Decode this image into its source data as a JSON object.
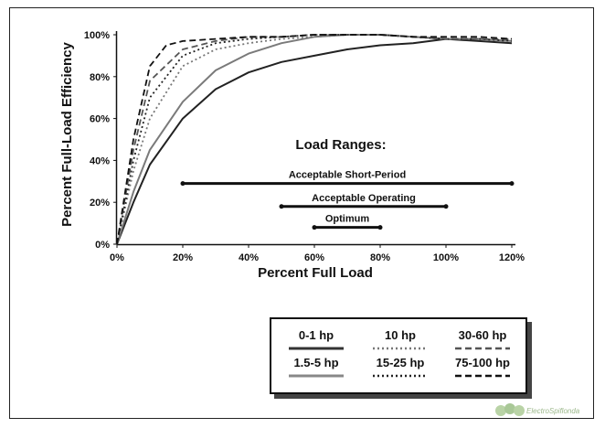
{
  "chart_data": {
    "type": "line",
    "xlabel": "Percent Full Load",
    "ylabel": "Percent Full-Load Efficiency",
    "x_ticks": [
      "0%",
      "20%",
      "40%",
      "60%",
      "80%",
      "100%",
      "120%"
    ],
    "y_ticks": [
      "0%",
      "20%",
      "40%",
      "60%",
      "80%",
      "100%"
    ],
    "xlim": [
      0,
      120
    ],
    "ylim": [
      0,
      100
    ],
    "grid": false,
    "legend_position": "bottom-right",
    "series": [
      {
        "name": "0-1 hp",
        "style": "solid",
        "color": "#222222",
        "x": [
          0,
          5,
          10,
          20,
          30,
          40,
          50,
          60,
          70,
          80,
          90,
          100,
          110,
          120
        ],
        "y": [
          0,
          20,
          38,
          60,
          74,
          82,
          87,
          90,
          93,
          95,
          96,
          98,
          97,
          96
        ]
      },
      {
        "name": "1.5-5 hp",
        "style": "solid",
        "color": "#7a7a7a",
        "x": [
          0,
          5,
          10,
          20,
          30,
          40,
          50,
          60,
          70,
          80,
          90,
          100,
          110,
          120
        ],
        "y": [
          0,
          25,
          45,
          68,
          83,
          91,
          96,
          99,
          100,
          100,
          99,
          98,
          98,
          97
        ]
      },
      {
        "name": "10 hp",
        "style": "dotted",
        "color": "#777777",
        "x": [
          0,
          5,
          10,
          20,
          30,
          40,
          50,
          60,
          70,
          80,
          90,
          100,
          110,
          120
        ],
        "y": [
          0,
          35,
          60,
          85,
          93,
          96,
          98,
          99,
          100,
          100,
          99,
          98,
          98,
          97
        ]
      },
      {
        "name": "15-25 hp",
        "style": "dotted",
        "color": "#222222",
        "x": [
          0,
          5,
          10,
          20,
          30,
          40,
          50,
          60,
          70,
          80,
          90,
          100,
          110,
          120
        ],
        "y": [
          0,
          40,
          70,
          90,
          96,
          98,
          99,
          100,
          100,
          100,
          99,
          98,
          98,
          97
        ]
      },
      {
        "name": "30-60 hp",
        "style": "dashed",
        "color": "#555555",
        "x": [
          0,
          5,
          10,
          20,
          30,
          40,
          50,
          60,
          70,
          80,
          90,
          100,
          110,
          120
        ],
        "y": [
          0,
          45,
          78,
          93,
          97,
          99,
          99,
          100,
          100,
          100,
          99,
          98,
          98,
          98
        ]
      },
      {
        "name": "75-100 hp",
        "style": "dashed",
        "color": "#111111",
        "x": [
          0,
          5,
          10,
          15,
          20,
          30,
          40,
          50,
          60,
          70,
          80,
          90,
          100,
          110,
          120
        ],
        "y": [
          0,
          50,
          85,
          95,
          97,
          98,
          99,
          99,
          100,
          100,
          100,
          99,
          99,
          99,
          98
        ]
      }
    ],
    "annotations": {
      "title": "Load Ranges:",
      "ranges": [
        {
          "label": "Acceptable Short-Period",
          "from": 20,
          "to": 120,
          "y": 29
        },
        {
          "label": "Acceptable Operating",
          "from": 50,
          "to": 100,
          "y": 18
        },
        {
          "label": "Optimum",
          "from": 60,
          "to": 80,
          "y": 8
        }
      ]
    }
  },
  "legend": [
    {
      "label": "0-1 hp",
      "style": "solid",
      "color": "#333333"
    },
    {
      "label": "10 hp",
      "style": "dotted",
      "color": "#777777"
    },
    {
      "label": "30-60 hp",
      "style": "dashed",
      "color": "#555555"
    },
    {
      "label": "1.5-5 hp",
      "style": "solid",
      "color": "#888888"
    },
    {
      "label": "15-25 hp",
      "style": "dotted",
      "color": "#222222"
    },
    {
      "label": "75-100 hp",
      "style": "dashed",
      "color": "#111111"
    }
  ],
  "watermark": {
    "text": "ElectroSpiflonda",
    "color": "#9db98c"
  }
}
